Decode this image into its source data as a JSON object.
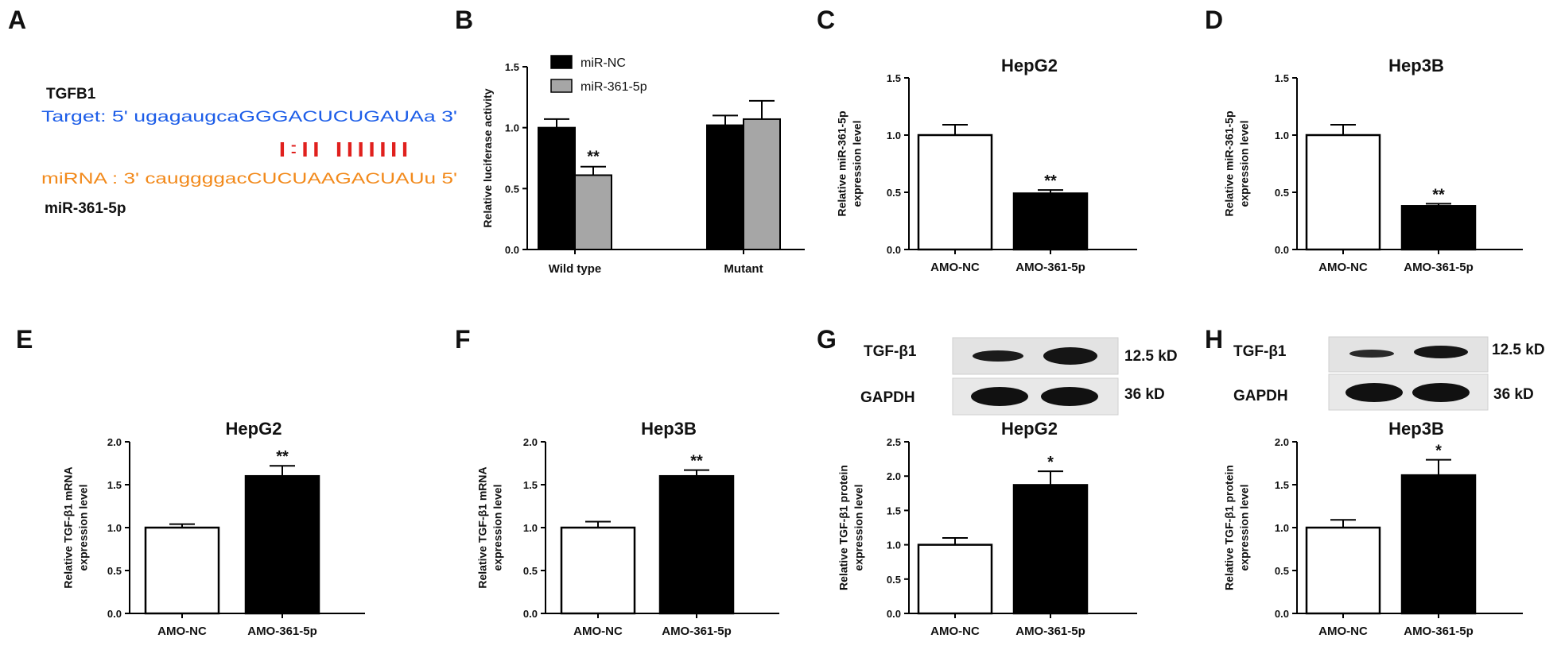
{
  "panels": {
    "A": {
      "letter": "A",
      "gene": "TGFB1",
      "target_line": "Target: 5' ugagaugcaGGGACUCUGAUAa 3'",
      "pairing_line": "|:|| |||||||",
      "mirna_line": "miRNA : 3' cauggggacCUCUAAGACUAUu 5'",
      "mirna_name": "miR-361-5p"
    },
    "B": {
      "letter": "B"
    },
    "C": {
      "letter": "C"
    },
    "D": {
      "letter": "D"
    },
    "E": {
      "letter": "E"
    },
    "F": {
      "letter": "F"
    },
    "G": {
      "letter": "G",
      "blot": {
        "band1": "TGF-β1",
        "band1_size": "12.5 kD",
        "band2": "GAPDH",
        "band2_size": "36 kD"
      }
    },
    "H": {
      "letter": "H",
      "blot": {
        "band1": "TGF-β1",
        "band1_size": "12.5 kD",
        "band2": "GAPDH",
        "band2_size": "36 kD"
      }
    }
  },
  "colors": {
    "black": "#000000",
    "white": "#ffffff",
    "grey": "#a6a6a6",
    "target": "#1c5de8",
    "mirna": "#f28a1c",
    "pairs": "#e0201d"
  },
  "chart_data": [
    {
      "id": "B",
      "type": "bar",
      "title": "",
      "ylabel": "Relative luciferase activity",
      "ylim": [
        0,
        1.5
      ],
      "yticks": [
        "0.0",
        "0.5",
        "1.0",
        "1.5"
      ],
      "categories": [
        "Wild type",
        "Mutant"
      ],
      "series": [
        {
          "name": "miR-NC",
          "values": [
            1.0,
            1.02
          ],
          "errors": [
            0.07,
            0.08
          ],
          "fill": "#000000",
          "sig": [
            "",
            ""
          ]
        },
        {
          "name": "miR-361-5p",
          "values": [
            0.61,
            1.07
          ],
          "errors": [
            0.07,
            0.15
          ],
          "fill": "#a6a6a6",
          "sig": [
            "**",
            ""
          ]
        }
      ],
      "legend": "top-left"
    },
    {
      "id": "C",
      "type": "bar",
      "title": "HepG2",
      "ylabel": [
        "Relative miR-361-5p",
        "expression level"
      ],
      "ylim": [
        0,
        1.5
      ],
      "yticks": [
        "0.0",
        "0.5",
        "1.0",
        "1.5"
      ],
      "categories": [
        "AMO-NC",
        "AMO-361-5p"
      ],
      "values": [
        1.0,
        0.49
      ],
      "errors": [
        0.09,
        0.03
      ],
      "fills": [
        "#ffffff",
        "#000000"
      ],
      "sig": [
        "",
        "**"
      ]
    },
    {
      "id": "D",
      "type": "bar",
      "title": "Hep3B",
      "ylabel": [
        "Relative miR-361-5p",
        "expression level"
      ],
      "ylim": [
        0,
        1.5
      ],
      "yticks": [
        "0.0",
        "0.5",
        "1.0",
        "1.5"
      ],
      "categories": [
        "AMO-NC",
        "AMO-361-5p"
      ],
      "values": [
        1.0,
        0.38
      ],
      "errors": [
        0.09,
        0.02
      ],
      "fills": [
        "#ffffff",
        "#000000"
      ],
      "sig": [
        "",
        "**"
      ]
    },
    {
      "id": "E",
      "type": "bar",
      "title": "HepG2",
      "ylabel": [
        "Relative TGF-β1 mRNA",
        "expression level"
      ],
      "ylim": [
        0,
        2.0
      ],
      "yticks": [
        "0.0",
        "0.5",
        "1.0",
        "1.5",
        "2.0"
      ],
      "categories": [
        "AMO-NC",
        "AMO-361-5p"
      ],
      "values": [
        1.0,
        1.6
      ],
      "errors": [
        0.04,
        0.12
      ],
      "fills": [
        "#ffffff",
        "#000000"
      ],
      "sig": [
        "",
        "**"
      ]
    },
    {
      "id": "F",
      "type": "bar",
      "title": "Hep3B",
      "ylabel": [
        "Relative TGF-β1 mRNA",
        "expression level"
      ],
      "ylim": [
        0,
        2.0
      ],
      "yticks": [
        "0.0",
        "0.5",
        "1.0",
        "1.5",
        "2.0"
      ],
      "categories": [
        "AMO-NC",
        "AMO-361-5p"
      ],
      "values": [
        1.0,
        1.6
      ],
      "errors": [
        0.07,
        0.07
      ],
      "fills": [
        "#ffffff",
        "#000000"
      ],
      "sig": [
        "",
        "**"
      ]
    },
    {
      "id": "G",
      "type": "bar",
      "title": "HepG2",
      "ylabel": [
        "Relative TGF-β1 protein",
        "expression level"
      ],
      "ylim": [
        0,
        2.5
      ],
      "yticks": [
        "0.0",
        "0.5",
        "1.0",
        "1.5",
        "2.0",
        "2.5"
      ],
      "categories": [
        "AMO-NC",
        "AMO-361-5p"
      ],
      "values": [
        1.0,
        1.87
      ],
      "errors": [
        0.1,
        0.2
      ],
      "fills": [
        "#ffffff",
        "#000000"
      ],
      "sig": [
        "",
        "*"
      ]
    },
    {
      "id": "H",
      "type": "bar",
      "title": "Hep3B",
      "ylabel": [
        "Relative TGF-β1 protein",
        "expression level"
      ],
      "ylim": [
        0,
        2.0
      ],
      "yticks": [
        "0.0",
        "0.5",
        "1.0",
        "1.5",
        "2.0"
      ],
      "categories": [
        "AMO-NC",
        "AMO-361-5p"
      ],
      "values": [
        1.0,
        1.61
      ],
      "errors": [
        0.09,
        0.18
      ],
      "fills": [
        "#ffffff",
        "#000000"
      ],
      "sig": [
        "",
        "*"
      ]
    }
  ]
}
